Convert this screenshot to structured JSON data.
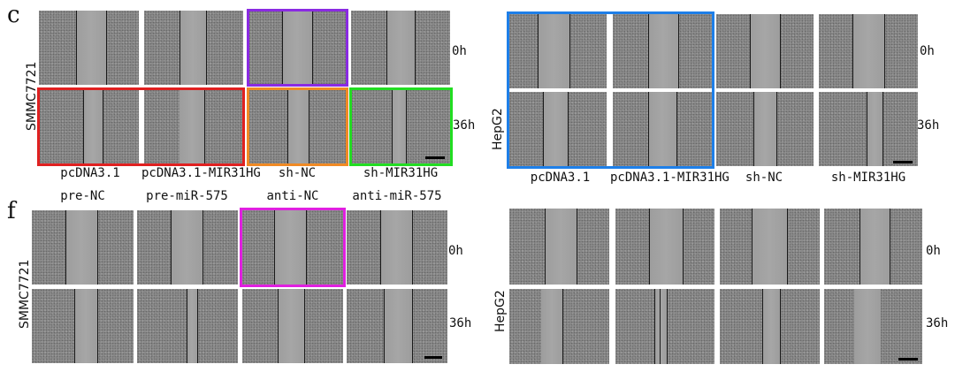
{
  "panel_c": {
    "letter": "c",
    "left_cell": "SMMC7721",
    "right_cell": "HepG2",
    "time_0": "0h",
    "time_36": "36h",
    "columns_left": [
      "pcDNA3.1",
      "pcDNA3.1-MIR31HG",
      "sh-NC",
      "sh-MIR31HG"
    ],
    "columns_right": [
      "pcDNA3.1",
      "pcDNA3.1-MIR31HG",
      "sh-NC",
      "sh-MIR31HG"
    ]
  },
  "panel_f": {
    "letter": "f",
    "left_cell": "SMMC7721",
    "right_cell": "HepG2",
    "time_0": "0h",
    "time_36": "36h",
    "columns_left": [
      "pre-NC",
      "pre-miR-575",
      "anti-NC",
      "anti-miR-575"
    ]
  },
  "colors": {
    "purple": "#8a2be2",
    "red": "#e02020",
    "orange": "#f08a24",
    "green": "#22dd22",
    "blue": "#1e7fe8",
    "magenta": "#e020e0"
  }
}
